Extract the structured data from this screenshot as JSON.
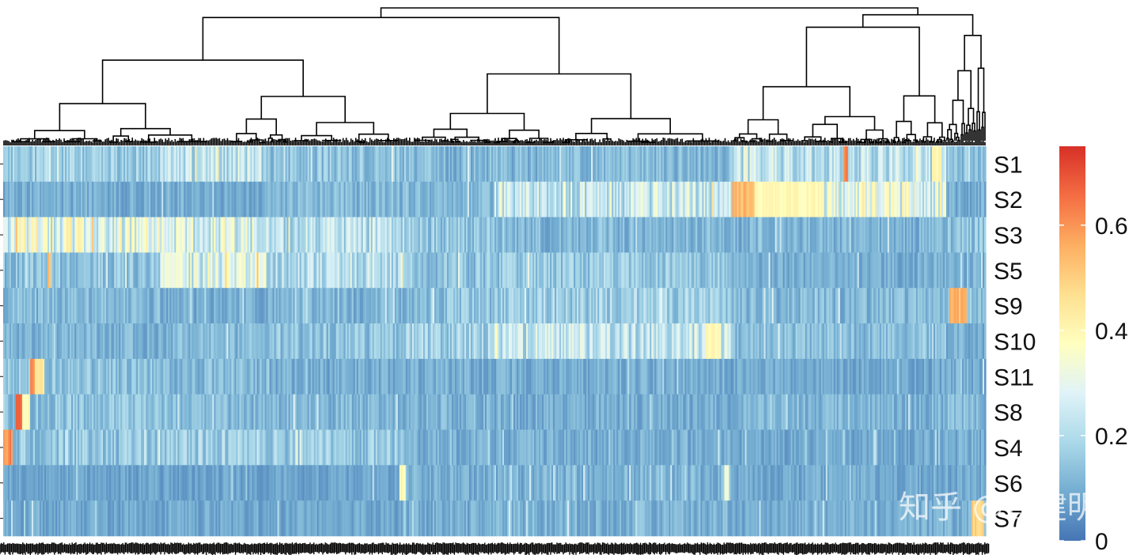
{
  "chart_data": {
    "type": "heatmap",
    "title": "",
    "rows": [
      "S1",
      "S2",
      "S3",
      "S5",
      "S9",
      "S10",
      "S11",
      "S8",
      "S4",
      "S6",
      "S7"
    ],
    "n_columns": 620,
    "column_dendrogram": true,
    "colorbar": {
      "position": "right",
      "min": 0,
      "max": 0.75,
      "ticks": [
        0,
        0.2,
        0.4,
        0.6
      ],
      "tick_labels": [
        "0",
        "0.2",
        "0.4",
        "0.6"
      ],
      "colormap": [
        "#4575b4",
        "#74add1",
        "#abd9e9",
        "#e0f3f8",
        "#ffffbf",
        "#fee090",
        "#fdae61",
        "#f46d43",
        "#d73027"
      ]
    },
    "cluster_blocks": [
      {
        "start": 0.0,
        "end": 0.16,
        "levels": [
          0.16,
          0.1,
          0.3,
          0.14,
          0.12,
          0.11,
          0.14,
          0.14,
          0.15,
          0.08,
          0.09
        ]
      },
      {
        "start": 0.16,
        "end": 0.27,
        "levels": [
          0.22,
          0.1,
          0.27,
          0.28,
          0.1,
          0.12,
          0.12,
          0.12,
          0.17,
          0.08,
          0.09
        ]
      },
      {
        "start": 0.27,
        "end": 0.41,
        "levels": [
          0.14,
          0.12,
          0.22,
          0.2,
          0.11,
          0.14,
          0.1,
          0.12,
          0.16,
          0.08,
          0.09
        ]
      },
      {
        "start": 0.41,
        "end": 0.5,
        "levels": [
          0.12,
          0.12,
          0.16,
          0.14,
          0.14,
          0.18,
          0.1,
          0.11,
          0.1,
          0.1,
          0.1
        ]
      },
      {
        "start": 0.5,
        "end": 0.74,
        "levels": [
          0.12,
          0.24,
          0.12,
          0.15,
          0.17,
          0.22,
          0.1,
          0.1,
          0.1,
          0.11,
          0.11
        ]
      },
      {
        "start": 0.74,
        "end": 0.96,
        "levels": [
          0.22,
          0.3,
          0.11,
          0.1,
          0.12,
          0.13,
          0.09,
          0.11,
          0.09,
          0.09,
          0.1
        ]
      },
      {
        "start": 0.96,
        "end": 1.0,
        "levels": [
          0.14,
          0.1,
          0.14,
          0.1,
          0.15,
          0.1,
          0.1,
          0.12,
          0.1,
          0.09,
          0.1
        ]
      }
    ],
    "hot_spots": [
      {
        "row": "S1",
        "start": 0.855,
        "end": 0.86,
        "value": 0.62
      },
      {
        "row": "S1",
        "start": 0.945,
        "end": 0.955,
        "value": 0.4
      },
      {
        "row": "S2",
        "start": 0.742,
        "end": 0.765,
        "value": 0.55
      },
      {
        "row": "S2",
        "start": 0.765,
        "end": 0.835,
        "value": 0.4
      },
      {
        "row": "S5",
        "start": 0.045,
        "end": 0.048,
        "value": 0.55
      },
      {
        "row": "S5",
        "start": 0.165,
        "end": 0.18,
        "value": 0.34
      },
      {
        "row": "S9",
        "start": 0.963,
        "end": 0.98,
        "value": 0.55
      },
      {
        "row": "S10",
        "start": 0.715,
        "end": 0.73,
        "value": 0.4
      },
      {
        "row": "S11",
        "start": 0.027,
        "end": 0.033,
        "value": 0.62
      },
      {
        "row": "S11",
        "start": 0.033,
        "end": 0.042,
        "value": 0.45
      },
      {
        "row": "S8",
        "start": 0.013,
        "end": 0.019,
        "value": 0.72
      },
      {
        "row": "S8",
        "start": 0.019,
        "end": 0.027,
        "value": 0.4
      },
      {
        "row": "S4",
        "start": 0.0,
        "end": 0.01,
        "value": 0.62
      },
      {
        "row": "S6",
        "start": 0.403,
        "end": 0.41,
        "value": 0.4
      },
      {
        "row": "S6",
        "start": 0.734,
        "end": 0.738,
        "value": 0.32
      },
      {
        "row": "S7",
        "start": 0.985,
        "end": 0.998,
        "value": 0.5
      }
    ],
    "xlabel": "",
    "ylabel": ""
  },
  "watermark": "知乎 @曾健明"
}
